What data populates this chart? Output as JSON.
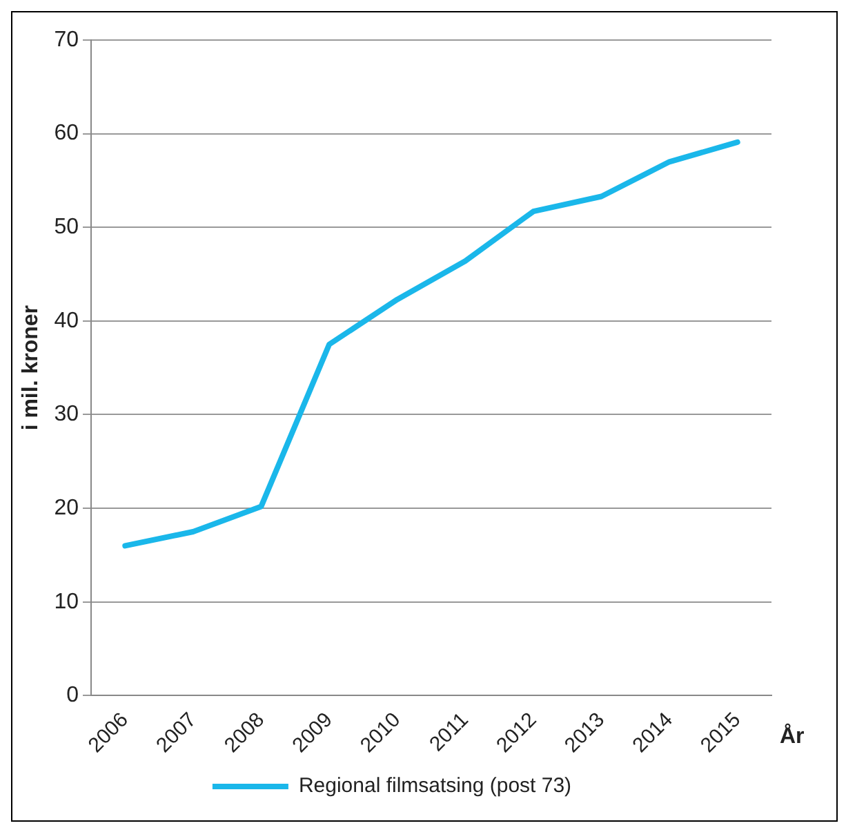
{
  "chart_data": {
    "type": "line",
    "xlabel": "År",
    "ylabel": "i mil. kroner",
    "categories": [
      "2006",
      "2007",
      "2008",
      "2009",
      "2010",
      "2011",
      "2012",
      "2013",
      "2014",
      "2015"
    ],
    "series": [
      {
        "name": "Regional filmsatsing (post 73)",
        "color": "#1ab7ea",
        "values": [
          16,
          17.5,
          20.2,
          37.5,
          42.3,
          46.4,
          51.7,
          53.3,
          57,
          59.1
        ]
      }
    ],
    "ylim": [
      0,
      70
    ],
    "yticks": [
      0,
      10,
      20,
      30,
      40,
      50,
      60,
      70
    ],
    "grid": "y",
    "legend": "bottom",
    "marker": "none",
    "line_style": "solid"
  }
}
